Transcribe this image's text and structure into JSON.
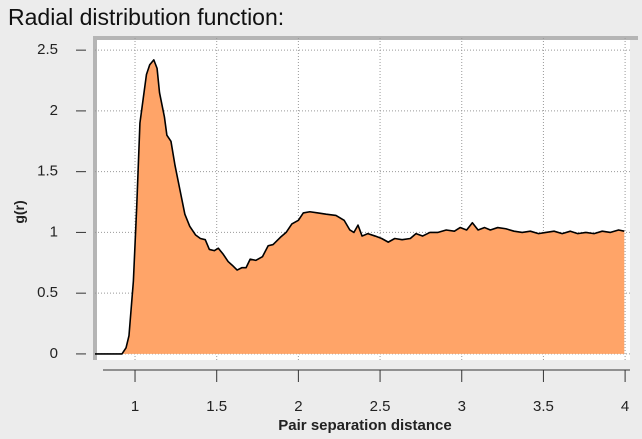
{
  "chart_data": {
    "type": "area",
    "title": "Radial distribution function:",
    "xlabel": "Pair separation distance",
    "ylabel": "g(r)",
    "x": [
      0.755,
      0.92,
      0.945,
      0.963,
      0.99,
      1.01,
      1.03,
      1.05,
      1.07,
      1.09,
      1.115,
      1.135,
      1.15,
      1.18,
      1.195,
      1.22,
      1.245,
      1.275,
      1.305,
      1.335,
      1.37,
      1.4,
      1.43,
      1.455,
      1.485,
      1.51,
      1.54,
      1.57,
      1.595,
      1.625,
      1.655,
      1.68,
      1.705,
      1.74,
      1.78,
      1.815,
      1.845,
      1.89,
      1.925,
      1.96,
      2.0,
      2.03,
      2.07,
      2.12,
      2.17,
      2.23,
      2.28,
      2.315,
      2.34,
      2.365,
      2.39,
      2.425,
      2.47,
      2.51,
      2.55,
      2.59,
      2.635,
      2.685,
      2.72,
      2.76,
      2.805,
      2.855,
      2.905,
      2.955,
      2.99,
      3.03,
      3.065,
      3.1,
      3.14,
      3.175,
      3.22,
      3.27,
      3.32,
      3.37,
      3.42,
      3.47,
      3.515,
      3.565,
      3.615,
      3.665,
      3.71,
      3.76,
      3.81,
      3.86,
      3.91,
      3.96,
      3.995
    ],
    "values": [
      0,
      0,
      0.05,
      0.15,
      0.6,
      1.2,
      1.9,
      2.1,
      2.3,
      2.38,
      2.42,
      2.35,
      2.15,
      1.95,
      1.8,
      1.75,
      1.55,
      1.35,
      1.15,
      1.05,
      0.98,
      0.95,
      0.94,
      0.86,
      0.85,
      0.87,
      0.82,
      0.76,
      0.73,
      0.69,
      0.71,
      0.71,
      0.78,
      0.77,
      0.8,
      0.89,
      0.9,
      0.96,
      1.0,
      1.07,
      1.1,
      1.16,
      1.17,
      1.16,
      1.15,
      1.14,
      1.1,
      1.02,
      1.0,
      1.06,
      0.97,
      0.99,
      0.97,
      0.95,
      0.92,
      0.95,
      0.94,
      0.95,
      0.99,
      0.97,
      1.0,
      1.0,
      1.02,
      1.01,
      1.04,
      1.02,
      1.08,
      1.02,
      1.04,
      1.02,
      1.04,
      1.03,
      1.01,
      1.0,
      1.01,
      0.99,
      1.0,
      1.01,
      0.99,
      1.01,
      0.99,
      1.0,
      0.99,
      1.01,
      1.0,
      1.02,
      1.01
    ],
    "color": "#ffa468",
    "line_color": "#000000",
    "xlim": [
      0.755,
      4.03
    ],
    "ylim": [
      -0.05,
      2.6
    ],
    "xticks": [
      1,
      1.5,
      2,
      2.5,
      3,
      3.5,
      4
    ],
    "yticks": [
      0,
      0.5,
      1,
      1.5,
      2,
      2.5
    ],
    "grid": true
  }
}
